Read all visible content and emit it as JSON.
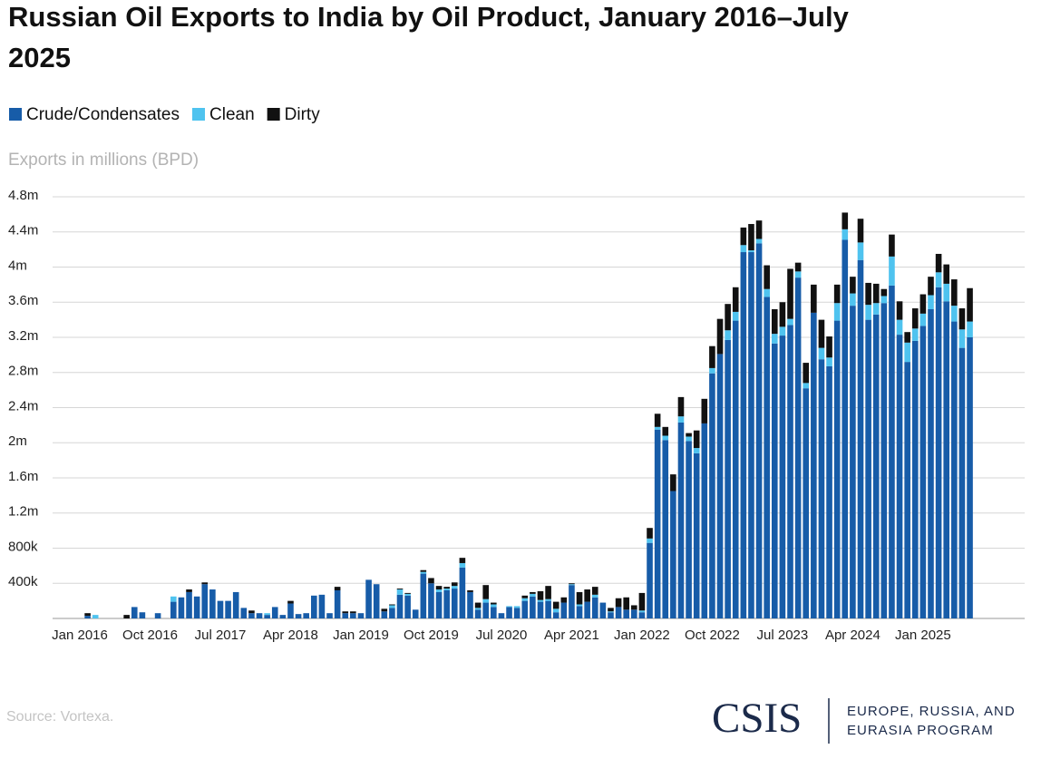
{
  "chart_data": {
    "type": "stacked-bar",
    "title": "Russian Oil Exports to India by Oil Product, January 2016–July 2025",
    "y_axis_label": "Exports in millions (BPD)",
    "source": "Source: Vortexa.",
    "branding": {
      "name": "CSIS",
      "program": [
        "EUROPE, RUSSIA, AND",
        "EURASIA PROGRAM"
      ]
    },
    "categories": [
      "Jan 2016",
      null,
      null,
      null,
      null,
      null,
      null,
      null,
      null,
      "Oct 2016",
      null,
      null,
      null,
      null,
      null,
      null,
      null,
      null,
      "Jul 2017",
      null,
      null,
      null,
      null,
      null,
      null,
      null,
      null,
      "Apr 2018",
      null,
      null,
      null,
      null,
      null,
      null,
      null,
      null,
      "Jan 2019",
      null,
      null,
      null,
      null,
      null,
      null,
      null,
      null,
      "Oct 2019",
      null,
      null,
      null,
      null,
      null,
      null,
      null,
      null,
      "Jul 2020",
      null,
      null,
      null,
      null,
      null,
      null,
      null,
      null,
      "Apr 2021",
      null,
      null,
      null,
      null,
      null,
      null,
      null,
      null,
      "Jan 2022",
      null,
      null,
      null,
      null,
      null,
      null,
      null,
      null,
      "Oct 2022",
      null,
      null,
      null,
      null,
      null,
      null,
      null,
      null,
      "Jul 2023",
      null,
      null,
      null,
      null,
      null,
      null,
      null,
      null,
      "Apr 2024",
      null,
      null,
      null,
      null,
      null,
      null,
      null,
      null,
      "Jan 2025",
      null,
      null,
      null,
      null,
      null,
      null
    ],
    "series": [
      {
        "name": "Crude/Condensates",
        "color": "#175ca8",
        "values": [
          0,
          0.03,
          0,
          0,
          0,
          0,
          0,
          0.13,
          0.07,
          0,
          0.06,
          0,
          0.19,
          0.24,
          0.3,
          0.25,
          0.39,
          0.33,
          0.2,
          0.2,
          0.3,
          0.12,
          0.06,
          0.06,
          0.04,
          0.13,
          0.04,
          0.17,
          0.05,
          0.06,
          0.26,
          0.27,
          0.06,
          0.32,
          0.06,
          0.06,
          0.06,
          0.44,
          0.39,
          0.08,
          0.12,
          0.27,
          0.26,
          0.1,
          0.51,
          0.4,
          0.3,
          0.32,
          0.34,
          0.58,
          0.3,
          0.1,
          0.18,
          0.13,
          0.06,
          0.13,
          0.12,
          0.2,
          0.25,
          0.19,
          0.2,
          0.07,
          0.18,
          0.38,
          0.14,
          0.19,
          0.24,
          0.18,
          0.07,
          0.13,
          0.1,
          0.1,
          0.07,
          0.86,
          2.15,
          2.03,
          1.45,
          2.23,
          2.02,
          1.88,
          2.22,
          2.79,
          3.01,
          3.17,
          3.39,
          4.17,
          4.17,
          4.27,
          3.66,
          3.13,
          3.22,
          3.34,
          3.88,
          2.62,
          3.48,
          2.95,
          2.87,
          3.39,
          4.31,
          3.56,
          4.08,
          3.4,
          3.46,
          3.59,
          3.79,
          3.23,
          2.92,
          3.16,
          3.33,
          3.52,
          3.77,
          3.61,
          3.38,
          3.08,
          3.2
        ]
      },
      {
        "name": "Clean",
        "color": "#4fc3ef",
        "values": [
          0,
          0,
          0.04,
          0,
          0,
          0,
          0,
          0,
          0,
          0,
          0,
          0,
          0.06,
          0,
          0,
          0,
          0,
          0,
          0,
          0,
          0,
          0,
          0,
          0,
          0.02,
          0,
          0,
          0,
          0,
          0,
          0,
          0,
          0,
          0,
          0,
          0,
          0,
          0,
          0,
          0,
          0.03,
          0.06,
          0.02,
          0,
          0.02,
          0,
          0.03,
          0.02,
          0.03,
          0.05,
          0,
          0.02,
          0.04,
          0.03,
          0,
          0.01,
          0.02,
          0.03,
          0.03,
          0.02,
          0.02,
          0.04,
          0,
          0.01,
          0.02,
          0,
          0.03,
          0,
          0.01,
          0,
          0,
          0,
          0.02,
          0.05,
          0.03,
          0.05,
          0,
          0.07,
          0.05,
          0.06,
          0,
          0.06,
          0,
          0.11,
          0.1,
          0.08,
          0.02,
          0.05,
          0.09,
          0.11,
          0.1,
          0.07,
          0.07,
          0.06,
          0,
          0.13,
          0.1,
          0.2,
          0.12,
          0.14,
          0.2,
          0.17,
          0.13,
          0.08,
          0.33,
          0.17,
          0.22,
          0.14,
          0.14,
          0.16,
          0.17,
          0.2,
          0.18,
          0.21,
          0.18
        ]
      },
      {
        "name": "Dirty",
        "color": "#111111",
        "values": [
          0,
          0.03,
          0,
          0,
          0,
          0,
          0.04,
          0,
          0,
          0,
          0,
          0,
          0,
          0,
          0.03,
          0,
          0.02,
          0,
          0,
          0,
          0,
          0,
          0.03,
          0,
          0,
          0,
          0,
          0.03,
          0,
          0,
          0,
          0,
          0,
          0.04,
          0.02,
          0.02,
          0,
          0,
          0,
          0.03,
          0.01,
          0.01,
          0.01,
          0,
          0.02,
          0.06,
          0.04,
          0.02,
          0.04,
          0.06,
          0.02,
          0.06,
          0.16,
          0.02,
          0,
          0,
          0,
          0.03,
          0.02,
          0.1,
          0.15,
          0.08,
          0.06,
          0.01,
          0.14,
          0.14,
          0.09,
          0,
          0.04,
          0.1,
          0.14,
          0.05,
          0.2,
          0.12,
          0.15,
          0.1,
          0.19,
          0.22,
          0.04,
          0.2,
          0.28,
          0.25,
          0.4,
          0.3,
          0.28,
          0.2,
          0.3,
          0.21,
          0.27,
          0.28,
          0.28,
          0.57,
          0.1,
          0.23,
          0.32,
          0.32,
          0.24,
          0.21,
          0.19,
          0.19,
          0.27,
          0.25,
          0.22,
          0.08,
          0.25,
          0.21,
          0.12,
          0.23,
          0.22,
          0.21,
          0.21,
          0.22,
          0.3,
          0.24,
          0.38
        ]
      }
    ],
    "ylim": [
      0,
      4.8
    ],
    "yticks": [
      {
        "value": 0.4,
        "label": "400k"
      },
      {
        "value": 0.8,
        "label": "800k"
      },
      {
        "value": 1.2,
        "label": "1.2m"
      },
      {
        "value": 1.6,
        "label": "1.6m"
      },
      {
        "value": 2,
        "label": "2m"
      },
      {
        "value": 2.4,
        "label": "2.4m"
      },
      {
        "value": 2.8,
        "label": "2.8m"
      },
      {
        "value": 3.2,
        "label": "3.2m"
      },
      {
        "value": 3.6,
        "label": "3.6m"
      },
      {
        "value": 4,
        "label": "4m"
      },
      {
        "value": 4.4,
        "label": "4.4m"
      },
      {
        "value": 4.8,
        "label": "4.8m"
      }
    ],
    "grid": true,
    "legend": "top-left"
  }
}
